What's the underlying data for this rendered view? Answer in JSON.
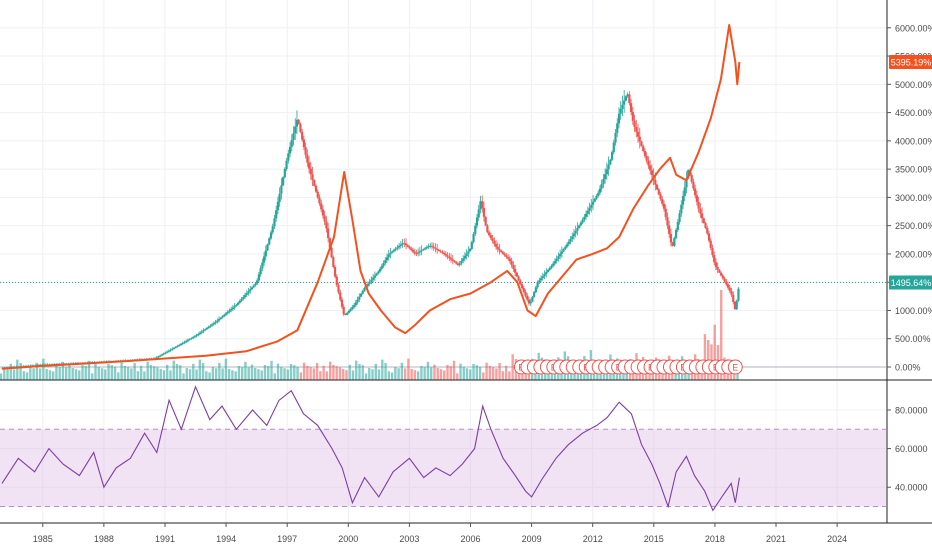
{
  "chart_data": [
    {
      "type": "line",
      "panel": "main",
      "yaxis_unit": "percent",
      "yticks": [
        0,
        500,
        1000,
        1500,
        2000,
        2500,
        3000,
        3500,
        4000,
        4500,
        5000,
        5500,
        6000
      ],
      "ytick_labels": [
        "0.00%",
        "500.00%",
        "1000.00%",
        "1500.00%",
        "2000.00%",
        "2500.00%",
        "3000.00%",
        "3500.00%",
        "4000.00%",
        "4500.00%",
        "5000.00%",
        "5500.00%",
        "6000.00%"
      ],
      "ylim": [
        -230,
        6350
      ],
      "xlim": [
        1982.9,
        2026.4
      ],
      "xticks": [
        1985,
        1988,
        1991,
        1994,
        1997,
        2000,
        2003,
        2006,
        2009,
        2012,
        2015,
        2018,
        2021,
        2024
      ],
      "xtick_labels": [
        "1985",
        "1988",
        "1991",
        "1994",
        "1997",
        "2000",
        "2003",
        "2006",
        "2009",
        "2012",
        "2015",
        "2018",
        "2021",
        "2024"
      ],
      "grid": true,
      "series": [
        {
          "color": "#26a69a",
          "down_color": "#ef5350",
          "style": "candles",
          "points": [
            [
              1983.0,
              -20
            ],
            [
              1985.0,
              40
            ],
            [
              1987.0,
              70
            ],
            [
              1989.0,
              110
            ],
            [
              1990.5,
              150
            ],
            [
              1991.5,
              350
            ],
            [
              1992.5,
              550
            ],
            [
              1993.5,
              800
            ],
            [
              1994.5,
              1100
            ],
            [
              1995.5,
              1500
            ],
            [
              1996.3,
              2500
            ],
            [
              1997.0,
              3700
            ],
            [
              1997.5,
              4400
            ],
            [
              1998.0,
              3600
            ],
            [
              1998.5,
              3000
            ],
            [
              1998.9,
              2500
            ],
            [
              1999.4,
              1500
            ],
            [
              1999.8,
              900
            ],
            [
              2000.3,
              1100
            ],
            [
              2000.8,
              1400
            ],
            [
              2001.5,
              1700
            ],
            [
              2002.0,
              2000
            ],
            [
              2002.7,
              2200
            ],
            [
              2003.3,
              2000
            ],
            [
              2004.0,
              2150
            ],
            [
              2004.7,
              2000
            ],
            [
              2005.4,
              1800
            ],
            [
              2006.0,
              2100
            ],
            [
              2006.5,
              2950
            ],
            [
              2006.8,
              2400
            ],
            [
              2007.3,
              2100
            ],
            [
              2007.9,
              1900
            ],
            [
              2008.4,
              1500
            ],
            [
              2008.9,
              1100
            ],
            [
              2009.3,
              1500
            ],
            [
              2010.0,
              1800
            ],
            [
              2010.8,
              2200
            ],
            [
              2011.5,
              2600
            ],
            [
              2012.3,
              3100
            ],
            [
              2012.9,
              3700
            ],
            [
              2013.3,
              4500
            ],
            [
              2013.7,
              4850
            ],
            [
              2014.0,
              4300
            ],
            [
              2014.5,
              3800
            ],
            [
              2015.0,
              3300
            ],
            [
              2015.5,
              2800
            ],
            [
              2015.9,
              2100
            ],
            [
              2016.2,
              2600
            ],
            [
              2016.7,
              3500
            ],
            [
              2017.2,
              2800
            ],
            [
              2017.6,
              2400
            ],
            [
              2018.0,
              1800
            ],
            [
              2018.5,
              1500
            ],
            [
              2018.8,
              1300
            ],
            [
              2019.0,
              1000
            ],
            [
              2019.2,
              1496
            ]
          ]
        },
        {
          "color": "#f4511e",
          "style": "line",
          "points": [
            [
              1983.0,
              -30
            ],
            [
              1985.0,
              20
            ],
            [
              1987.0,
              60
            ],
            [
              1989.0,
              100
            ],
            [
              1991.0,
              150
            ],
            [
              1993.0,
              200
            ],
            [
              1995.0,
              280
            ],
            [
              1996.5,
              450
            ],
            [
              1997.5,
              650
            ],
            [
              1998.5,
              1500
            ],
            [
              1999.3,
              2300
            ],
            [
              1999.8,
              3450
            ],
            [
              2000.2,
              2600
            ],
            [
              2000.6,
              1700
            ],
            [
              2001.0,
              1300
            ],
            [
              2001.6,
              1000
            ],
            [
              2002.3,
              700
            ],
            [
              2002.8,
              600
            ],
            [
              2003.3,
              750
            ],
            [
              2004.0,
              1000
            ],
            [
              2005.0,
              1200
            ],
            [
              2006.0,
              1300
            ],
            [
              2007.0,
              1500
            ],
            [
              2007.8,
              1700
            ],
            [
              2008.3,
              1500
            ],
            [
              2008.8,
              1000
            ],
            [
              2009.2,
              900
            ],
            [
              2009.8,
              1300
            ],
            [
              2010.5,
              1600
            ],
            [
              2011.2,
              1900
            ],
            [
              2012.0,
              2000
            ],
            [
              2012.7,
              2100
            ],
            [
              2013.3,
              2300
            ],
            [
              2014.0,
              2800
            ],
            [
              2014.7,
              3200
            ],
            [
              2015.3,
              3500
            ],
            [
              2015.8,
              3700
            ],
            [
              2016.1,
              3400
            ],
            [
              2016.6,
              3300
            ],
            [
              2017.2,
              3800
            ],
            [
              2017.8,
              4400
            ],
            [
              2018.3,
              5100
            ],
            [
              2018.7,
              6050
            ],
            [
              2019.0,
              5400
            ],
            [
              2019.1,
              5000
            ],
            [
              2019.2,
              5395
            ]
          ]
        }
      ],
      "price_labels": [
        {
          "text": "5395.19%",
          "value": 5395.19,
          "color": "#f4511e"
        },
        {
          "text": "1495.64%",
          "value": 1495.64,
          "color": "#26a69a"
        }
      ],
      "reference_line": {
        "value": 1495.64,
        "color": "#26a69a",
        "style": "dotted"
      },
      "volume": {
        "up_color": "#26a69a",
        "down_color": "#ef5350",
        "note_pattern": [
          3,
          5,
          4,
          6,
          3,
          7,
          5,
          4
        ]
      },
      "events": {
        "marker_letter": "E",
        "color": "#ef5350",
        "x_range": [
          2008.5,
          2019.0
        ],
        "count": 34
      }
    },
    {
      "type": "line",
      "panel": "oscillator",
      "yticks": [
        40,
        60,
        80
      ],
      "ytick_labels": [
        "40.0000",
        "60.0000",
        "80.0000"
      ],
      "ylim": [
        22,
        95
      ],
      "band": [
        30,
        70
      ],
      "band_color": "#e1bee7",
      "line_color": "#7b3fa5",
      "points": [
        [
          1983.0,
          42
        ],
        [
          1983.8,
          55
        ],
        [
          1984.6,
          48
        ],
        [
          1985.3,
          60
        ],
        [
          1986.0,
          52
        ],
        [
          1986.8,
          46
        ],
        [
          1987.5,
          58
        ],
        [
          1988.0,
          40
        ],
        [
          1988.6,
          50
        ],
        [
          1989.3,
          55
        ],
        [
          1990.0,
          68
        ],
        [
          1990.6,
          58
        ],
        [
          1991.2,
          85
        ],
        [
          1991.8,
          70
        ],
        [
          1992.5,
          92
        ],
        [
          1993.2,
          75
        ],
        [
          1993.8,
          82
        ],
        [
          1994.5,
          70
        ],
        [
          1995.3,
          80
        ],
        [
          1996.0,
          72
        ],
        [
          1996.6,
          85
        ],
        [
          1997.2,
          90
        ],
        [
          1997.8,
          78
        ],
        [
          1998.5,
          72
        ],
        [
          1999.2,
          60
        ],
        [
          1999.7,
          50
        ],
        [
          2000.2,
          32
        ],
        [
          2000.8,
          45
        ],
        [
          2001.5,
          35
        ],
        [
          2002.2,
          48
        ],
        [
          2003.0,
          55
        ],
        [
          2003.7,
          45
        ],
        [
          2004.3,
          50
        ],
        [
          2005.0,
          46
        ],
        [
          2005.6,
          52
        ],
        [
          2006.2,
          60
        ],
        [
          2006.6,
          82
        ],
        [
          2007.0,
          70
        ],
        [
          2007.6,
          55
        ],
        [
          2008.2,
          46
        ],
        [
          2008.7,
          38
        ],
        [
          2009.0,
          35
        ],
        [
          2009.5,
          44
        ],
        [
          2010.2,
          55
        ],
        [
          2010.8,
          62
        ],
        [
          2011.5,
          68
        ],
        [
          2012.2,
          72
        ],
        [
          2012.7,
          76
        ],
        [
          2013.3,
          84
        ],
        [
          2013.9,
          78
        ],
        [
          2014.4,
          62
        ],
        [
          2014.9,
          52
        ],
        [
          2015.3,
          42
        ],
        [
          2015.7,
          30
        ],
        [
          2016.1,
          48
        ],
        [
          2016.6,
          56
        ],
        [
          2017.0,
          46
        ],
        [
          2017.5,
          38
        ],
        [
          2017.9,
          28
        ],
        [
          2018.4,
          36
        ],
        [
          2018.8,
          42
        ],
        [
          2019.0,
          32
        ],
        [
          2019.2,
          45
        ]
      ]
    }
  ]
}
